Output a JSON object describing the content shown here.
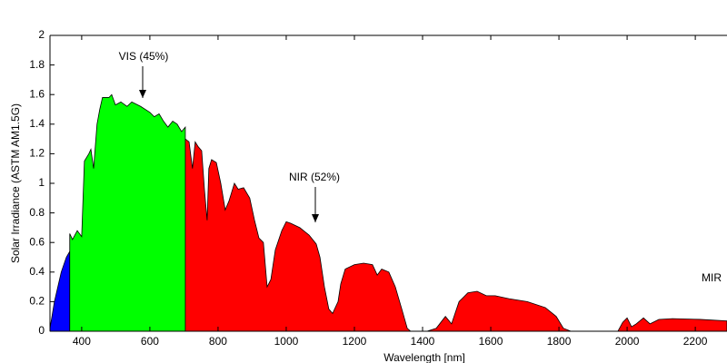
{
  "chart_data": {
    "type": "area",
    "xlabel": "Wavelength [nm]",
    "ylabel": "Solar Irradiance (ASTM AM1.5G)",
    "annotations": [
      "VIS (45%)",
      "NIR (52%)",
      "MIR"
    ],
    "xlim": [
      307,
      2293
    ],
    "ylim": [
      0,
      2
    ],
    "xticks": [
      400,
      600,
      800,
      1000,
      1200,
      1400,
      1600,
      1800,
      2000,
      2200
    ],
    "yticks": [
      0,
      0.2,
      0.4,
      0.6,
      0.8,
      1,
      1.2,
      1.4,
      1.6,
      1.8,
      2
    ],
    "series": [
      {
        "color": "#0000ff",
        "x": [
          307,
          320,
          340,
          355,
          365
        ],
        "values": [
          0.02,
          0.2,
          0.4,
          0.5,
          0.54
        ]
      },
      {
        "color": "#00ff00",
        "x": [
          365,
          373,
          387,
          400,
          408,
          421,
          427,
          435,
          445,
          453,
          461,
          480,
          488,
          499,
          515,
          533,
          547,
          573,
          600,
          613,
          627,
          640,
          653,
          667,
          680,
          693,
          704
        ],
        "values": [
          0.66,
          0.62,
          0.68,
          0.64,
          1.15,
          1.2,
          1.23,
          1.1,
          1.4,
          1.5,
          1.58,
          1.58,
          1.6,
          1.53,
          1.55,
          1.52,
          1.55,
          1.52,
          1.48,
          1.45,
          1.47,
          1.42,
          1.38,
          1.42,
          1.4,
          1.35,
          1.38
        ]
      },
      {
        "color": "#ff0000",
        "x": [
          704,
          715,
          725,
          733,
          741,
          752,
          760,
          768,
          773,
          781,
          795,
          808,
          821,
          832,
          848,
          859,
          875,
          893,
          907,
          920,
          933,
          944,
          955,
          968,
          987,
          1000,
          1013,
          1040,
          1067,
          1088,
          1099,
          1112,
          1125,
          1136,
          1152,
          1160,
          1173,
          1200,
          1227,
          1253,
          1267,
          1280,
          1301,
          1320,
          1339,
          1355,
          1365,
          1413,
          1440,
          1467,
          1485,
          1507,
          1533,
          1560,
          1587,
          1613,
          1653,
          1707,
          1760,
          1792,
          1813,
          1835,
          1973,
          1987,
          2000,
          2013,
          2027,
          2048,
          2067,
          2093,
          2133,
          2213,
          2293
        ],
        "values": [
          1.3,
          1.28,
          1.1,
          1.28,
          1.25,
          1.22,
          0.96,
          0.75,
          1.1,
          1.16,
          1.14,
          1.0,
          0.82,
          0.88,
          1.0,
          0.96,
          0.97,
          0.9,
          0.75,
          0.63,
          0.6,
          0.3,
          0.35,
          0.55,
          0.68,
          0.74,
          0.73,
          0.7,
          0.65,
          0.59,
          0.5,
          0.3,
          0.15,
          0.12,
          0.2,
          0.32,
          0.42,
          0.45,
          0.46,
          0.45,
          0.38,
          0.42,
          0.4,
          0.3,
          0.15,
          0.02,
          0,
          0,
          0.02,
          0.1,
          0.05,
          0.2,
          0.26,
          0.27,
          0.24,
          0.24,
          0.22,
          0.2,
          0.16,
          0.1,
          0.02,
          0,
          0,
          0.06,
          0.09,
          0.03,
          0.05,
          0.09,
          0.05,
          0.08,
          0.085,
          0.08,
          0.07
        ]
      }
    ]
  }
}
